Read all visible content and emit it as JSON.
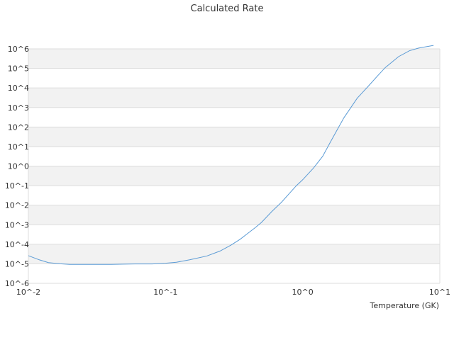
{
  "chart_data": {
    "type": "line",
    "title": "Calculated Rate",
    "xlabel": "Temperature (GK)",
    "ylabel": "",
    "x_scale": "log",
    "y_scale": "log",
    "xlim": [
      0.01,
      10
    ],
    "ylim": [
      1e-06,
      1000000.0
    ],
    "x_tick_values": [
      0.01,
      0.1,
      1,
      10
    ],
    "x_tick_labels": [
      "10^-2",
      "10^-1",
      "10^0",
      "10^1"
    ],
    "y_tick_values": [
      1e-06,
      1e-05,
      0.0001,
      0.001,
      0.01,
      0.1,
      1,
      10,
      100,
      1000,
      10000,
      100000,
      1000000
    ],
    "y_tick_labels": [
      "10^-6",
      "10^-5",
      "10^-4",
      "10^-3",
      "10^-2",
      "10^-1",
      "10^0",
      "10^1",
      "10^2",
      "10^3",
      "10^4",
      "10^5",
      "10^6"
    ],
    "grid": "alternating horizontal bands",
    "legend": "none",
    "colors": {
      "line": "#5b9bd5",
      "band": "#f2f2f2",
      "grid": "#dddddd",
      "text": "#333333"
    },
    "series": [
      {
        "x": [
          0.01,
          0.012,
          0.014,
          0.017,
          0.02,
          0.025,
          0.03,
          0.04,
          0.05,
          0.06,
          0.08,
          0.1,
          0.12,
          0.15,
          0.2,
          0.25,
          0.3,
          0.35,
          0.4,
          0.45,
          0.5,
          0.6,
          0.7,
          0.8,
          0.9,
          1.0,
          1.2,
          1.4,
          1.6,
          1.8,
          2.0,
          2.5,
          3.0,
          3.5,
          4.0,
          5.0,
          6.0,
          7.0,
          8.0,
          9.0
        ],
        "y": [
          2.6e-05,
          1.6e-05,
          1.15e-05,
          1e-05,
          9.3e-06,
          9.3e-06,
          9.3e-06,
          9.3e-06,
          9.6e-06,
          9.8e-06,
          9.8e-06,
          1.07e-05,
          1.2e-05,
          1.6e-05,
          2.5e-05,
          4.5e-05,
          9e-05,
          0.00018,
          0.00037,
          0.0007,
          0.0013,
          0.005,
          0.014,
          0.04,
          0.1,
          0.2,
          0.8,
          3.2,
          18,
          80,
          300,
          3000,
          12000,
          40000,
          110000,
          400000,
          800000,
          1100000,
          1300000,
          1500000
        ]
      }
    ]
  }
}
